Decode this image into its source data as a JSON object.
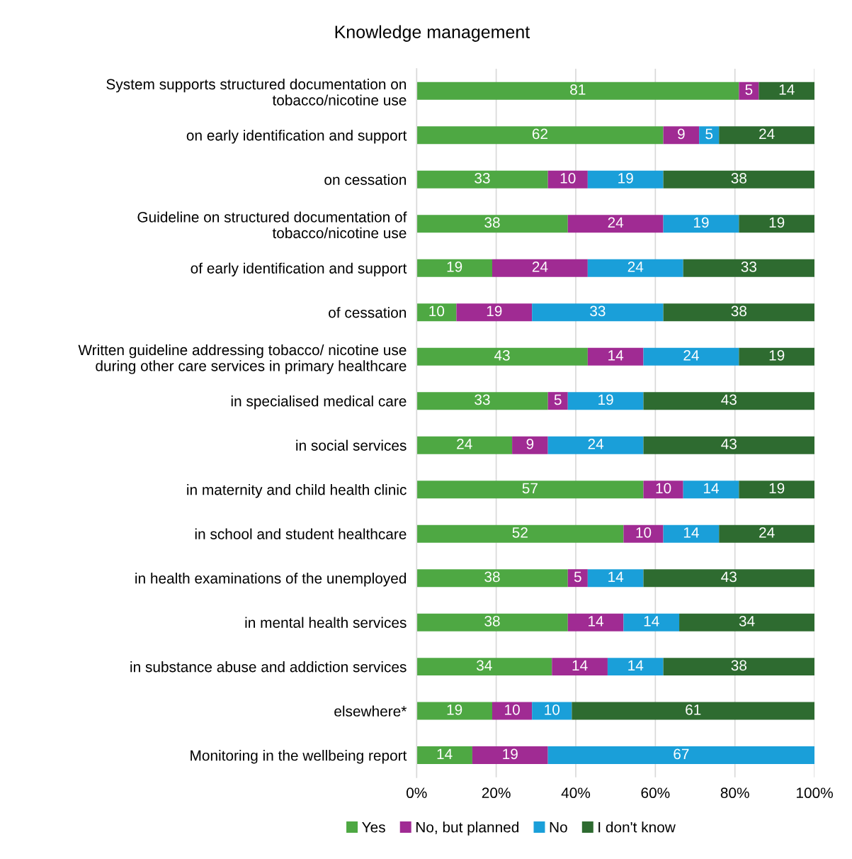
{
  "chart_data": {
    "type": "bar",
    "orientation": "horizontal",
    "stacked": true,
    "title": "Knowledge management",
    "categories": [
      "System supports structured documentation on\ntobacco/nicotine use",
      "on early identification and support",
      "on cessation",
      "Guideline on structured documentation of\ntobacco/nicotine use",
      "of early identification and support",
      "of cessation",
      "Written guideline addressing tobacco/ nicotine use\nduring other care services in primary healthcare",
      "in specialised medical care",
      "in social services",
      "in maternity and child health clinic",
      "in school and student healthcare",
      "in health examinations of the unemployed",
      "in mental health services",
      "in substance abuse and addiction services",
      "elsewhere*",
      "Monitoring in the wellbeing report"
    ],
    "series": [
      {
        "name": "Yes",
        "color": "#4ea843",
        "values": [
          81,
          62,
          33,
          38,
          19,
          10,
          43,
          33,
          24,
          57,
          52,
          38,
          38,
          34,
          19,
          14
        ]
      },
      {
        "name": "No, but planned",
        "color": "#a02b93",
        "values": [
          5,
          9,
          10,
          24,
          24,
          19,
          14,
          5,
          9,
          10,
          10,
          5,
          14,
          14,
          10,
          19
        ]
      },
      {
        "name": "No",
        "color": "#1a9fd9",
        "values": [
          null,
          5,
          19,
          19,
          24,
          33,
          24,
          19,
          24,
          14,
          14,
          14,
          14,
          14,
          10,
          67
        ]
      },
      {
        "name": "I don't know",
        "color": "#2e6b30",
        "values": [
          14,
          24,
          38,
          19,
          33,
          38,
          19,
          43,
          43,
          19,
          24,
          43,
          34,
          38,
          61,
          null
        ]
      }
    ],
    "data_labels": true,
    "xlim": [
      0,
      100
    ],
    "xticks": [
      {
        "value": 0,
        "label": "0%"
      },
      {
        "value": 20,
        "label": "20%"
      },
      {
        "value": 40,
        "label": "40%"
      },
      {
        "value": 60,
        "label": "60%"
      },
      {
        "value": 80,
        "label": "80%"
      },
      {
        "value": 100,
        "label": "100%"
      }
    ],
    "grid": "x",
    "legend": "bottom"
  }
}
